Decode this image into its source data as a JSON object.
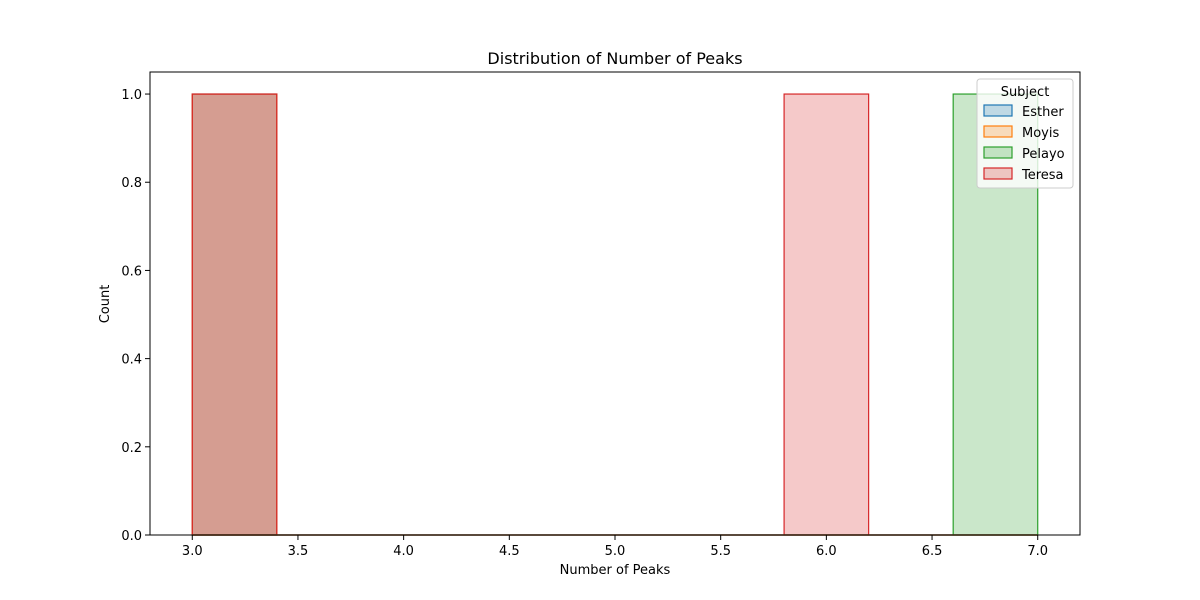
{
  "chart_data": {
    "type": "bar",
    "title": "Distribution of Number of Peaks",
    "xlabel": "Number of Peaks",
    "ylabel": "Count",
    "xlim": [
      2.8,
      7.2
    ],
    "ylim": [
      0,
      1.05
    ],
    "xticks": [
      "3.0",
      "3.5",
      "4.0",
      "4.5",
      "5.0",
      "5.5",
      "6.0",
      "6.5",
      "7.0"
    ],
    "xtick_values": [
      3.0,
      3.5,
      4.0,
      4.5,
      5.0,
      5.5,
      6.0,
      6.5,
      7.0
    ],
    "yticks": [
      "0.0",
      "0.2",
      "0.4",
      "0.6",
      "0.8",
      "1.0"
    ],
    "ytick_values": [
      0.0,
      0.2,
      0.4,
      0.6,
      0.8,
      1.0
    ],
    "bin_edges": [
      3.0,
      3.4,
      3.8,
      4.2,
      4.6,
      5.0,
      5.4,
      5.8,
      6.2,
      6.6,
      7.0
    ],
    "legend_title": "Subject",
    "legend_position": "top-right",
    "grid": false,
    "series": [
      {
        "name": "Esther",
        "color": "#1f77b4",
        "counts": [
          1,
          0,
          0,
          0,
          0,
          0,
          0,
          0,
          0,
          0
        ]
      },
      {
        "name": "Moyis",
        "color": "#ff7f0e",
        "counts": [
          1,
          0,
          0,
          0,
          0,
          0,
          0,
          0,
          0,
          0
        ]
      },
      {
        "name": "Pelayo",
        "color": "#2ca02c",
        "counts": [
          0,
          0,
          0,
          0,
          0,
          0,
          0,
          0,
          0,
          1
        ]
      },
      {
        "name": "Teresa",
        "color": "#d62728",
        "counts": [
          1,
          0,
          0,
          0,
          0,
          0,
          0,
          1,
          0,
          0
        ]
      }
    ]
  }
}
